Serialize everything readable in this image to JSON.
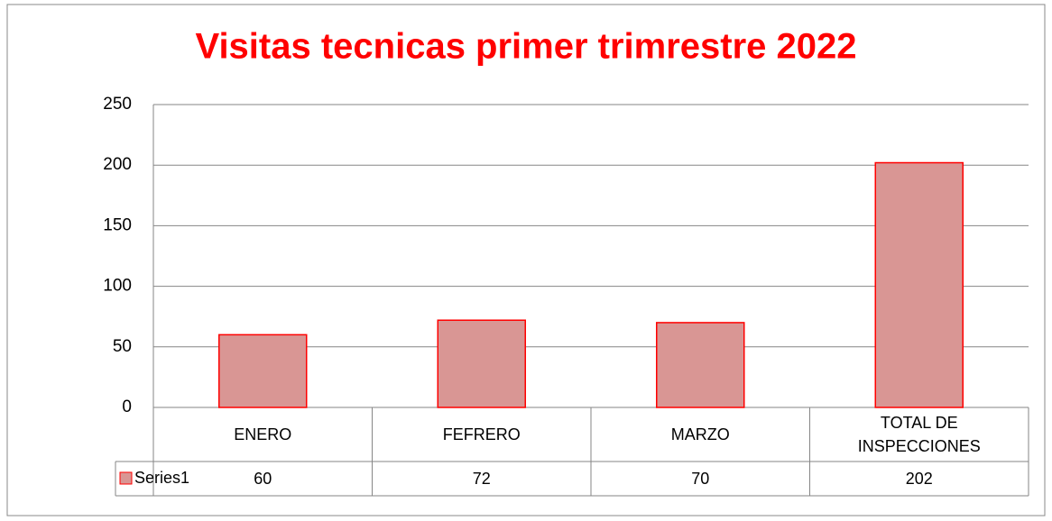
{
  "chart_data": {
    "type": "bar",
    "title": "Visitas tecnicas primer trimrestre 2022",
    "categories": [
      "ENERO",
      "FEFRERO",
      "MARZO",
      "TOTAL DE INSPECCIONES"
    ],
    "series": [
      {
        "name": "Series1",
        "color": "#d99694",
        "border": "#ff0000",
        "values": [
          60,
          72,
          70,
          202
        ]
      }
    ],
    "ylim": [
      0,
      250
    ],
    "yticks": [
      0,
      50,
      100,
      150,
      200,
      250
    ],
    "grid": true,
    "data_table": true
  }
}
